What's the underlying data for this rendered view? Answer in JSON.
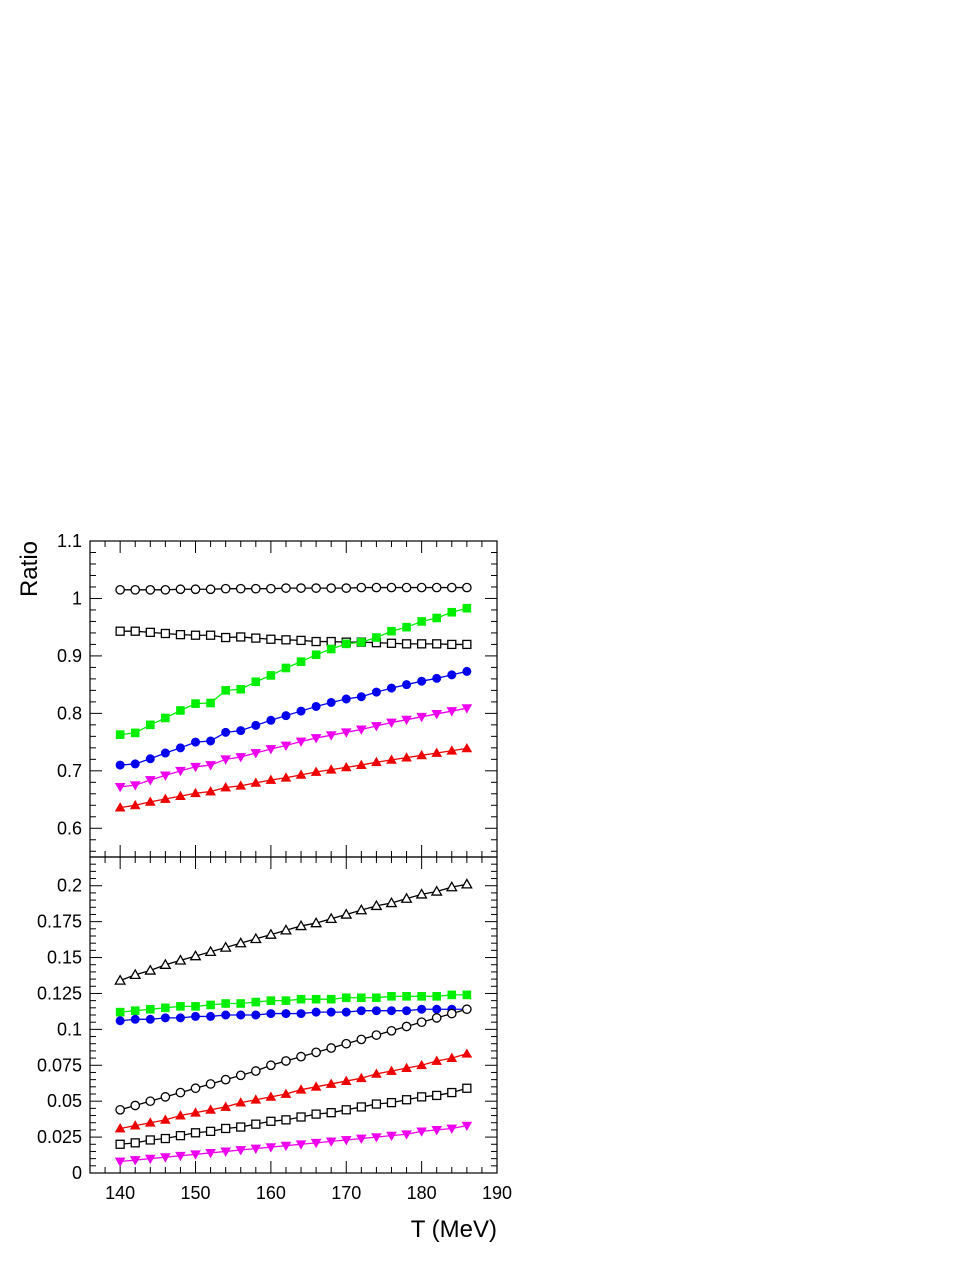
{
  "chart_data": [
    {
      "type": "line",
      "panel": "top",
      "title": "",
      "xlabel": "",
      "ylabel": "Ratio",
      "xlim": [
        136,
        190
      ],
      "ylim": [
        0.55,
        1.1
      ],
      "yticks": [
        0.6,
        0.7,
        0.8,
        0.9,
        1.0,
        1.1
      ],
      "ytick_labels": [
        "0.6",
        "0.7",
        "0.8",
        "0.9",
        "1",
        "1.1"
      ],
      "x": [
        140,
        142,
        144,
        146,
        148,
        150,
        152,
        154,
        156,
        158,
        160,
        162,
        164,
        166,
        168,
        170,
        172,
        174,
        176,
        178,
        180,
        182,
        184,
        186
      ],
      "series": [
        {
          "marker": "open-circle",
          "color": "#000000",
          "values": [
            1.015,
            1.015,
            1.015,
            1.015,
            1.016,
            1.016,
            1.016,
            1.017,
            1.017,
            1.017,
            1.017,
            1.018,
            1.018,
            1.018,
            1.018,
            1.018,
            1.019,
            1.019,
            1.019,
            1.019,
            1.019,
            1.019,
            1.019,
            1.019
          ]
        },
        {
          "marker": "open-square",
          "color": "#000000",
          "values": [
            0.943,
            0.943,
            0.941,
            0.939,
            0.937,
            0.936,
            0.936,
            0.932,
            0.933,
            0.931,
            0.929,
            0.928,
            0.927,
            0.925,
            0.925,
            0.924,
            0.924,
            0.923,
            0.922,
            0.921,
            0.921,
            0.921,
            0.92,
            0.92
          ]
        },
        {
          "marker": "filled-square",
          "color": "#00ee00",
          "values": [
            0.763,
            0.766,
            0.78,
            0.792,
            0.805,
            0.817,
            0.818,
            0.84,
            0.842,
            0.855,
            0.866,
            0.879,
            0.89,
            0.902,
            0.912,
            0.921,
            0.924,
            0.932,
            0.943,
            0.95,
            0.96,
            0.966,
            0.976,
            0.983
          ]
        },
        {
          "marker": "filled-circle",
          "color": "#0000ee",
          "values": [
            0.71,
            0.712,
            0.721,
            0.731,
            0.74,
            0.75,
            0.752,
            0.767,
            0.77,
            0.779,
            0.788,
            0.796,
            0.804,
            0.812,
            0.819,
            0.825,
            0.829,
            0.837,
            0.844,
            0.85,
            0.856,
            0.861,
            0.867,
            0.873
          ]
        },
        {
          "marker": "filled-triangle-down",
          "color": "#ee00ee",
          "values": [
            0.672,
            0.675,
            0.684,
            0.692,
            0.7,
            0.707,
            0.71,
            0.72,
            0.724,
            0.731,
            0.738,
            0.744,
            0.751,
            0.757,
            0.762,
            0.767,
            0.772,
            0.778,
            0.784,
            0.789,
            0.794,
            0.799,
            0.804,
            0.809
          ]
        },
        {
          "marker": "filled-triangle-up",
          "color": "#ee0000",
          "values": [
            0.636,
            0.64,
            0.646,
            0.651,
            0.656,
            0.661,
            0.664,
            0.671,
            0.674,
            0.679,
            0.684,
            0.688,
            0.693,
            0.698,
            0.702,
            0.706,
            0.71,
            0.715,
            0.719,
            0.723,
            0.727,
            0.731,
            0.735,
            0.739
          ]
        }
      ]
    },
    {
      "type": "line",
      "panel": "bottom",
      "title": "",
      "xlabel": "T (MeV)",
      "ylabel": "",
      "xlim": [
        136,
        190
      ],
      "ylim": [
        0,
        0.22
      ],
      "xticks": [
        140,
        150,
        160,
        170,
        180,
        190
      ],
      "xtick_labels": [
        "140",
        "150",
        "160",
        "170",
        "180",
        "190"
      ],
      "yticks": [
        0,
        0.025,
        0.05,
        0.075,
        0.1,
        0.125,
        0.15,
        0.175,
        0.2
      ],
      "ytick_labels": [
        "0",
        "0.025",
        "0.05",
        "0.075",
        "0.1",
        "0.125",
        "0.15",
        "0.175",
        "0.2"
      ],
      "x": [
        140,
        142,
        144,
        146,
        148,
        150,
        152,
        154,
        156,
        158,
        160,
        162,
        164,
        166,
        168,
        170,
        172,
        174,
        176,
        178,
        180,
        182,
        184,
        186
      ],
      "series": [
        {
          "marker": "open-triangle-up",
          "color": "#000000",
          "values": [
            0.134,
            0.138,
            0.141,
            0.145,
            0.148,
            0.151,
            0.154,
            0.157,
            0.16,
            0.163,
            0.166,
            0.169,
            0.172,
            0.174,
            0.177,
            0.18,
            0.183,
            0.186,
            0.188,
            0.191,
            0.194,
            0.196,
            0.199,
            0.201
          ]
        },
        {
          "marker": "filled-square",
          "color": "#00ee00",
          "values": [
            0.112,
            0.113,
            0.114,
            0.115,
            0.116,
            0.116,
            0.117,
            0.118,
            0.118,
            0.119,
            0.12,
            0.12,
            0.121,
            0.121,
            0.121,
            0.122,
            0.122,
            0.122,
            0.123,
            0.123,
            0.123,
            0.123,
            0.124,
            0.124
          ]
        },
        {
          "marker": "filled-circle",
          "color": "#0000ee",
          "values": [
            0.106,
            0.107,
            0.107,
            0.108,
            0.108,
            0.109,
            0.109,
            0.11,
            0.11,
            0.11,
            0.111,
            0.111,
            0.111,
            0.112,
            0.112,
            0.112,
            0.113,
            0.113,
            0.113,
            0.113,
            0.114,
            0.114,
            0.114,
            0.114
          ]
        },
        {
          "marker": "open-circle",
          "color": "#000000",
          "values": [
            0.044,
            0.047,
            0.05,
            0.053,
            0.056,
            0.059,
            0.062,
            0.065,
            0.068,
            0.071,
            0.075,
            0.078,
            0.081,
            0.084,
            0.087,
            0.09,
            0.093,
            0.096,
            0.099,
            0.102,
            0.105,
            0.108,
            0.111,
            0.114
          ]
        },
        {
          "marker": "filled-triangle-up",
          "color": "#ee0000",
          "values": [
            0.031,
            0.033,
            0.035,
            0.037,
            0.04,
            0.042,
            0.044,
            0.046,
            0.049,
            0.051,
            0.053,
            0.055,
            0.058,
            0.06,
            0.062,
            0.064,
            0.066,
            0.069,
            0.071,
            0.073,
            0.075,
            0.078,
            0.08,
            0.083
          ]
        },
        {
          "marker": "open-square",
          "color": "#000000",
          "values": [
            0.02,
            0.021,
            0.023,
            0.024,
            0.026,
            0.028,
            0.029,
            0.031,
            0.032,
            0.034,
            0.036,
            0.037,
            0.039,
            0.041,
            0.042,
            0.044,
            0.046,
            0.048,
            0.049,
            0.051,
            0.053,
            0.054,
            0.056,
            0.059
          ]
        },
        {
          "marker": "filled-triangle-down",
          "color": "#ee00ee",
          "values": [
            0.008,
            0.009,
            0.01,
            0.011,
            0.012,
            0.013,
            0.014,
            0.015,
            0.016,
            0.017,
            0.018,
            0.019,
            0.02,
            0.021,
            0.022,
            0.023,
            0.024,
            0.025,
            0.026,
            0.027,
            0.029,
            0.03,
            0.031,
            0.033
          ]
        }
      ]
    }
  ]
}
